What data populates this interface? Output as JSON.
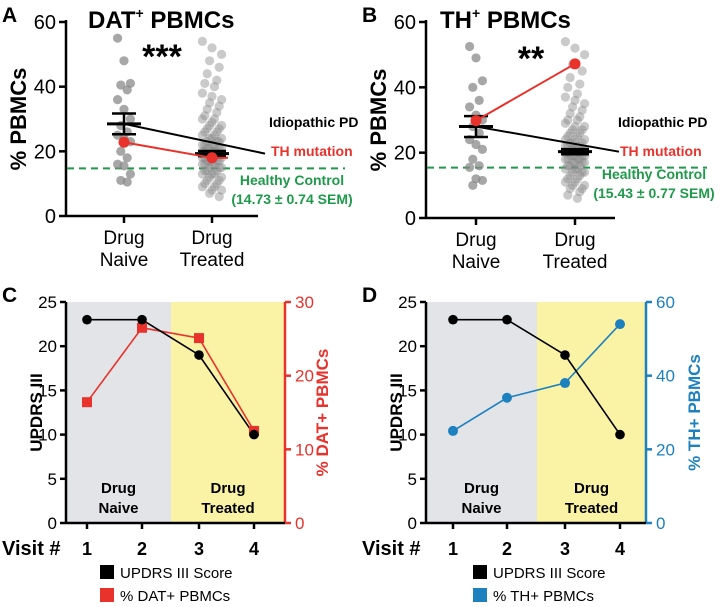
{
  "colors": {
    "black": "#000000",
    "red": "#e8322b",
    "green": "#1e9a4a",
    "blue": "#1d80bf",
    "grey_point": "#8a8a8a",
    "naive_bg": "#e3e4e8",
    "treated_bg": "#faf3a6"
  },
  "chart_data": [
    {
      "panel": "A",
      "type": "scatter",
      "title": "DAT",
      "title_sup": "+",
      "title_rest": " PBMCs",
      "ylabel": "% PBMCs",
      "ylim": [
        0,
        60
      ],
      "yticks": [
        0,
        20,
        40,
        60
      ],
      "categories": [
        [
          "Drug",
          "Naive"
        ],
        [
          "Drug",
          "Treated"
        ]
      ],
      "significance": "***",
      "idiopathic": {
        "name": "Idiopathic PD",
        "means": [
          28.5,
          19.3
        ],
        "sem": [
          3.2,
          0.8
        ]
      },
      "th_mutation": {
        "name": "TH mutation",
        "values": [
          22.8,
          18.0
        ]
      },
      "healthy_control": {
        "name": "Healthy Control",
        "detail": "(14.73 ± 0.74 SEM)",
        "value": 14.73
      },
      "naive_points": [
        55,
        48,
        41,
        40.5,
        39,
        36,
        33,
        30,
        28,
        26,
        25,
        24,
        23,
        20,
        18,
        16,
        15.5,
        13,
        11,
        10.5
      ],
      "treated_points": [
        54,
        52,
        50,
        48,
        46,
        44,
        42,
        41,
        40,
        38,
        37,
        36,
        35,
        34,
        33,
        32,
        31,
        30,
        30,
        29,
        28,
        28,
        27,
        27,
        26,
        26,
        25,
        25,
        24,
        24,
        24,
        23,
        23,
        23,
        22,
        22,
        22,
        22,
        21,
        21,
        21,
        21,
        20,
        20,
        20,
        20,
        20,
        19,
        19,
        19,
        19,
        19,
        18,
        18,
        18,
        18,
        18,
        17,
        17,
        17,
        17,
        16,
        16,
        16,
        16,
        15,
        15,
        15,
        14,
        14,
        14,
        13,
        13,
        13,
        12,
        12,
        11,
        11,
        10,
        10,
        9,
        9,
        8,
        8,
        7,
        6
      ]
    },
    {
      "panel": "B",
      "type": "scatter",
      "title": "TH",
      "title_sup": "+",
      "title_rest": " PBMCs",
      "ylabel": "% PBMCs",
      "ylim": [
        0,
        60
      ],
      "yticks": [
        0,
        20,
        40,
        60
      ],
      "categories": [
        [
          "Drug",
          "Naive"
        ],
        [
          "Drug",
          "Treated"
        ]
      ],
      "significance": "**",
      "idiopathic": {
        "name": "Idiopathic PD",
        "means": [
          28.0,
          20.3
        ],
        "sem": [
          3.2,
          0.8
        ]
      },
      "th_mutation": {
        "name": "TH mutation",
        "values": [
          29.8,
          47.2
        ]
      },
      "healthy_control": {
        "name": "Healthy Control",
        "detail": "(15.43 ± 0.77 SEM)",
        "value": 15.43
      },
      "naive_points": [
        52.5,
        49,
        42,
        40,
        36,
        34,
        31.5,
        30,
        28,
        26,
        24,
        22.5,
        21,
        18,
        16,
        15.5,
        12,
        11.5,
        10
      ],
      "treated_points": [
        54,
        52,
        50,
        47,
        45,
        43,
        41,
        40,
        38,
        37,
        36,
        35,
        34,
        33,
        32,
        31,
        30,
        30,
        29,
        28,
        28,
        27,
        27,
        26,
        26,
        25,
        25,
        24,
        24,
        24,
        23,
        23,
        23,
        22,
        22,
        22,
        22,
        21,
        21,
        21,
        21,
        20,
        20,
        20,
        20,
        20,
        19,
        19,
        19,
        19,
        19,
        18,
        18,
        18,
        18,
        17,
        17,
        17,
        17,
        16,
        16,
        16,
        15,
        15,
        15,
        14,
        14,
        14,
        13,
        13,
        12,
        12,
        11,
        11,
        10,
        10,
        9,
        9,
        8,
        7,
        6
      ]
    },
    {
      "panel": "C",
      "type": "line",
      "xlabel": "Visit #",
      "x": [
        1,
        2,
        3,
        4
      ],
      "ylabel_left": "UPDRS III",
      "ylim_left": [
        0,
        25
      ],
      "yticks_left": [
        0,
        5,
        10,
        15,
        20,
        25
      ],
      "ylabel_right": "% DAT+ PBMCs",
      "ylim_right": [
        0,
        30
      ],
      "yticks_right": [
        0,
        10,
        20,
        30
      ],
      "naive_label": [
        "Drug",
        "Naive"
      ],
      "treated_label": [
        "Drug",
        "Treated"
      ],
      "series": [
        {
          "name": "UPDRS III Score",
          "axis": "left",
          "values": [
            23,
            23,
            19,
            10
          ]
        },
        {
          "name": "% DAT+ PBMCs",
          "axis": "right",
          "values": [
            16.4,
            26.5,
            25.1,
            12.5
          ]
        }
      ]
    },
    {
      "panel": "D",
      "type": "line",
      "xlabel": "Visit #",
      "x": [
        1,
        2,
        3,
        4
      ],
      "ylabel_left": "UPDRS III",
      "ylim_left": [
        0,
        25
      ],
      "yticks_left": [
        0,
        5,
        10,
        15,
        20,
        25
      ],
      "ylabel_right": "% TH+ PBMCs",
      "ylim_right": [
        0,
        60
      ],
      "yticks_right": [
        0,
        20,
        40,
        60
      ],
      "naive_label": [
        "Drug",
        "Naive"
      ],
      "treated_label": [
        "Drug",
        "Treated"
      ],
      "series": [
        {
          "name": "UPDRS III Score",
          "axis": "left",
          "values": [
            23,
            23,
            19,
            10
          ]
        },
        {
          "name": "% TH+ PBMCs",
          "axis": "right",
          "values": [
            25,
            34,
            38,
            54
          ]
        }
      ]
    }
  ]
}
